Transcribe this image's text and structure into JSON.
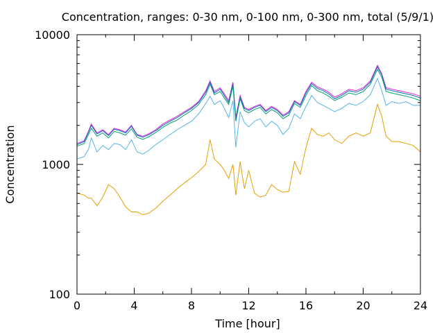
{
  "chart_data": {
    "type": "line",
    "title": "Concentration, ranges: 0-30 nm, 0-100 nm, 0-300 nm, total (5/9/1)",
    "xlabel": "Time [hour]",
    "ylabel": "Concentration",
    "xlim": [
      0,
      24
    ],
    "ylim": [
      100,
      10000
    ],
    "yscale": "log",
    "grid": false,
    "x_ticks": [
      0,
      4,
      8,
      12,
      16,
      20,
      24
    ],
    "x_tick_labels": [
      "0",
      "4",
      "8",
      "12",
      "16",
      "20",
      "24"
    ],
    "y_ticks": [
      100,
      1000,
      10000
    ],
    "y_tick_labels": [
      "100",
      "1000",
      "10000"
    ],
    "x": [
      0,
      0.5,
      0.8,
      1.0,
      1.4,
      1.8,
      2.2,
      2.6,
      3.0,
      3.4,
      3.8,
      4.2,
      4.6,
      5.0,
      5.5,
      6.0,
      6.5,
      7.0,
      7.5,
      8.0,
      8.5,
      9.0,
      9.3,
      9.6,
      10.0,
      10.3,
      10.6,
      10.9,
      11.1,
      11.4,
      11.7,
      12.0,
      12.4,
      12.8,
      13.2,
      13.6,
      14.0,
      14.4,
      14.8,
      15.2,
      15.6,
      16.0,
      16.4,
      16.8,
      17.2,
      17.6,
      18.0,
      18.5,
      19.0,
      19.5,
      20.0,
      20.5,
      21.0,
      21.3,
      21.6,
      22.0,
      22.5,
      23.0,
      23.5,
      24.0
    ],
    "series": [
      {
        "color": "#e51ee5",
        "values": [
          1450,
          1520,
          1800,
          2050,
          1750,
          1850,
          1700,
          1900,
          1850,
          1780,
          2000,
          1700,
          1650,
          1720,
          1850,
          2050,
          2200,
          2350,
          2550,
          2750,
          3050,
          3700,
          4400,
          3650,
          3900,
          3500,
          3100,
          4300,
          2300,
          3400,
          2750,
          2650,
          2800,
          2900,
          2600,
          2800,
          2650,
          2400,
          2550,
          3100,
          2900,
          3650,
          4300,
          3950,
          3800,
          3600,
          3300,
          3500,
          3800,
          3700,
          3900,
          4400,
          5800,
          5000,
          3900,
          3800,
          3700,
          3600,
          3500,
          3350
        ]
      },
      {
        "color": "#0c6db9",
        "values": [
          1420,
          1500,
          1770,
          2000,
          1720,
          1820,
          1670,
          1870,
          1820,
          1750,
          1970,
          1680,
          1620,
          1690,
          1820,
          2000,
          2150,
          2300,
          2500,
          2700,
          3000,
          3600,
          4300,
          3550,
          3800,
          3400,
          3000,
          4200,
          2250,
          3300,
          2700,
          2600,
          2750,
          2850,
          2550,
          2750,
          2600,
          2350,
          2500,
          3050,
          2850,
          3550,
          4200,
          3850,
          3700,
          3500,
          3200,
          3400,
          3700,
          3600,
          3800,
          4300,
          5650,
          4900,
          3800,
          3700,
          3600,
          3500,
          3400,
          3250
        ]
      },
      {
        "color": "#009e73",
        "values": [
          1380,
          1450,
          1700,
          1900,
          1650,
          1750,
          1600,
          1800,
          1750,
          1680,
          1880,
          1620,
          1560,
          1630,
          1760,
          1930,
          2080,
          2200,
          2400,
          2600,
          2900,
          3450,
          4150,
          3450,
          3650,
          3250,
          2900,
          4000,
          2150,
          3200,
          2600,
          2500,
          2650,
          2750,
          2450,
          2650,
          2500,
          2250,
          2400,
          2950,
          2750,
          3400,
          4050,
          3700,
          3550,
          3350,
          3100,
          3300,
          3550,
          3450,
          3650,
          4150,
          5400,
          4700,
          3650,
          3550,
          3450,
          3350,
          3250,
          3100
        ]
      },
      {
        "color": "#56b4e9",
        "values": [
          1100,
          1150,
          1300,
          1600,
          1250,
          1400,
          1300,
          1450,
          1420,
          1300,
          1550,
          1250,
          1200,
          1280,
          1420,
          1550,
          1700,
          1850,
          2000,
          2150,
          2450,
          2950,
          3350,
          2900,
          3100,
          2700,
          2300,
          3100,
          1350,
          2550,
          2100,
          1950,
          2150,
          2250,
          1950,
          2150,
          2000,
          1700,
          1900,
          2450,
          2250,
          2800,
          3400,
          3000,
          2850,
          2700,
          2550,
          2700,
          2950,
          2850,
          3050,
          3450,
          4600,
          3700,
          2850,
          3050,
          2950,
          3050,
          2850,
          2850
        ]
      },
      {
        "color": "#e69f00",
        "values": [
          600,
          580,
          550,
          550,
          480,
          560,
          700,
          650,
          560,
          470,
          430,
          430,
          410,
          420,
          460,
          520,
          580,
          650,
          720,
          790,
          880,
          1000,
          1550,
          1100,
          1000,
          900,
          780,
          1000,
          580,
          1050,
          650,
          900,
          600,
          560,
          580,
          700,
          640,
          610,
          620,
          1050,
          840,
          1350,
          1900,
          1700,
          1650,
          1750,
          1550,
          1450,
          1650,
          1750,
          1650,
          1750,
          2900,
          2350,
          1650,
          1500,
          1500,
          1450,
          1400,
          1250
        ]
      }
    ]
  }
}
